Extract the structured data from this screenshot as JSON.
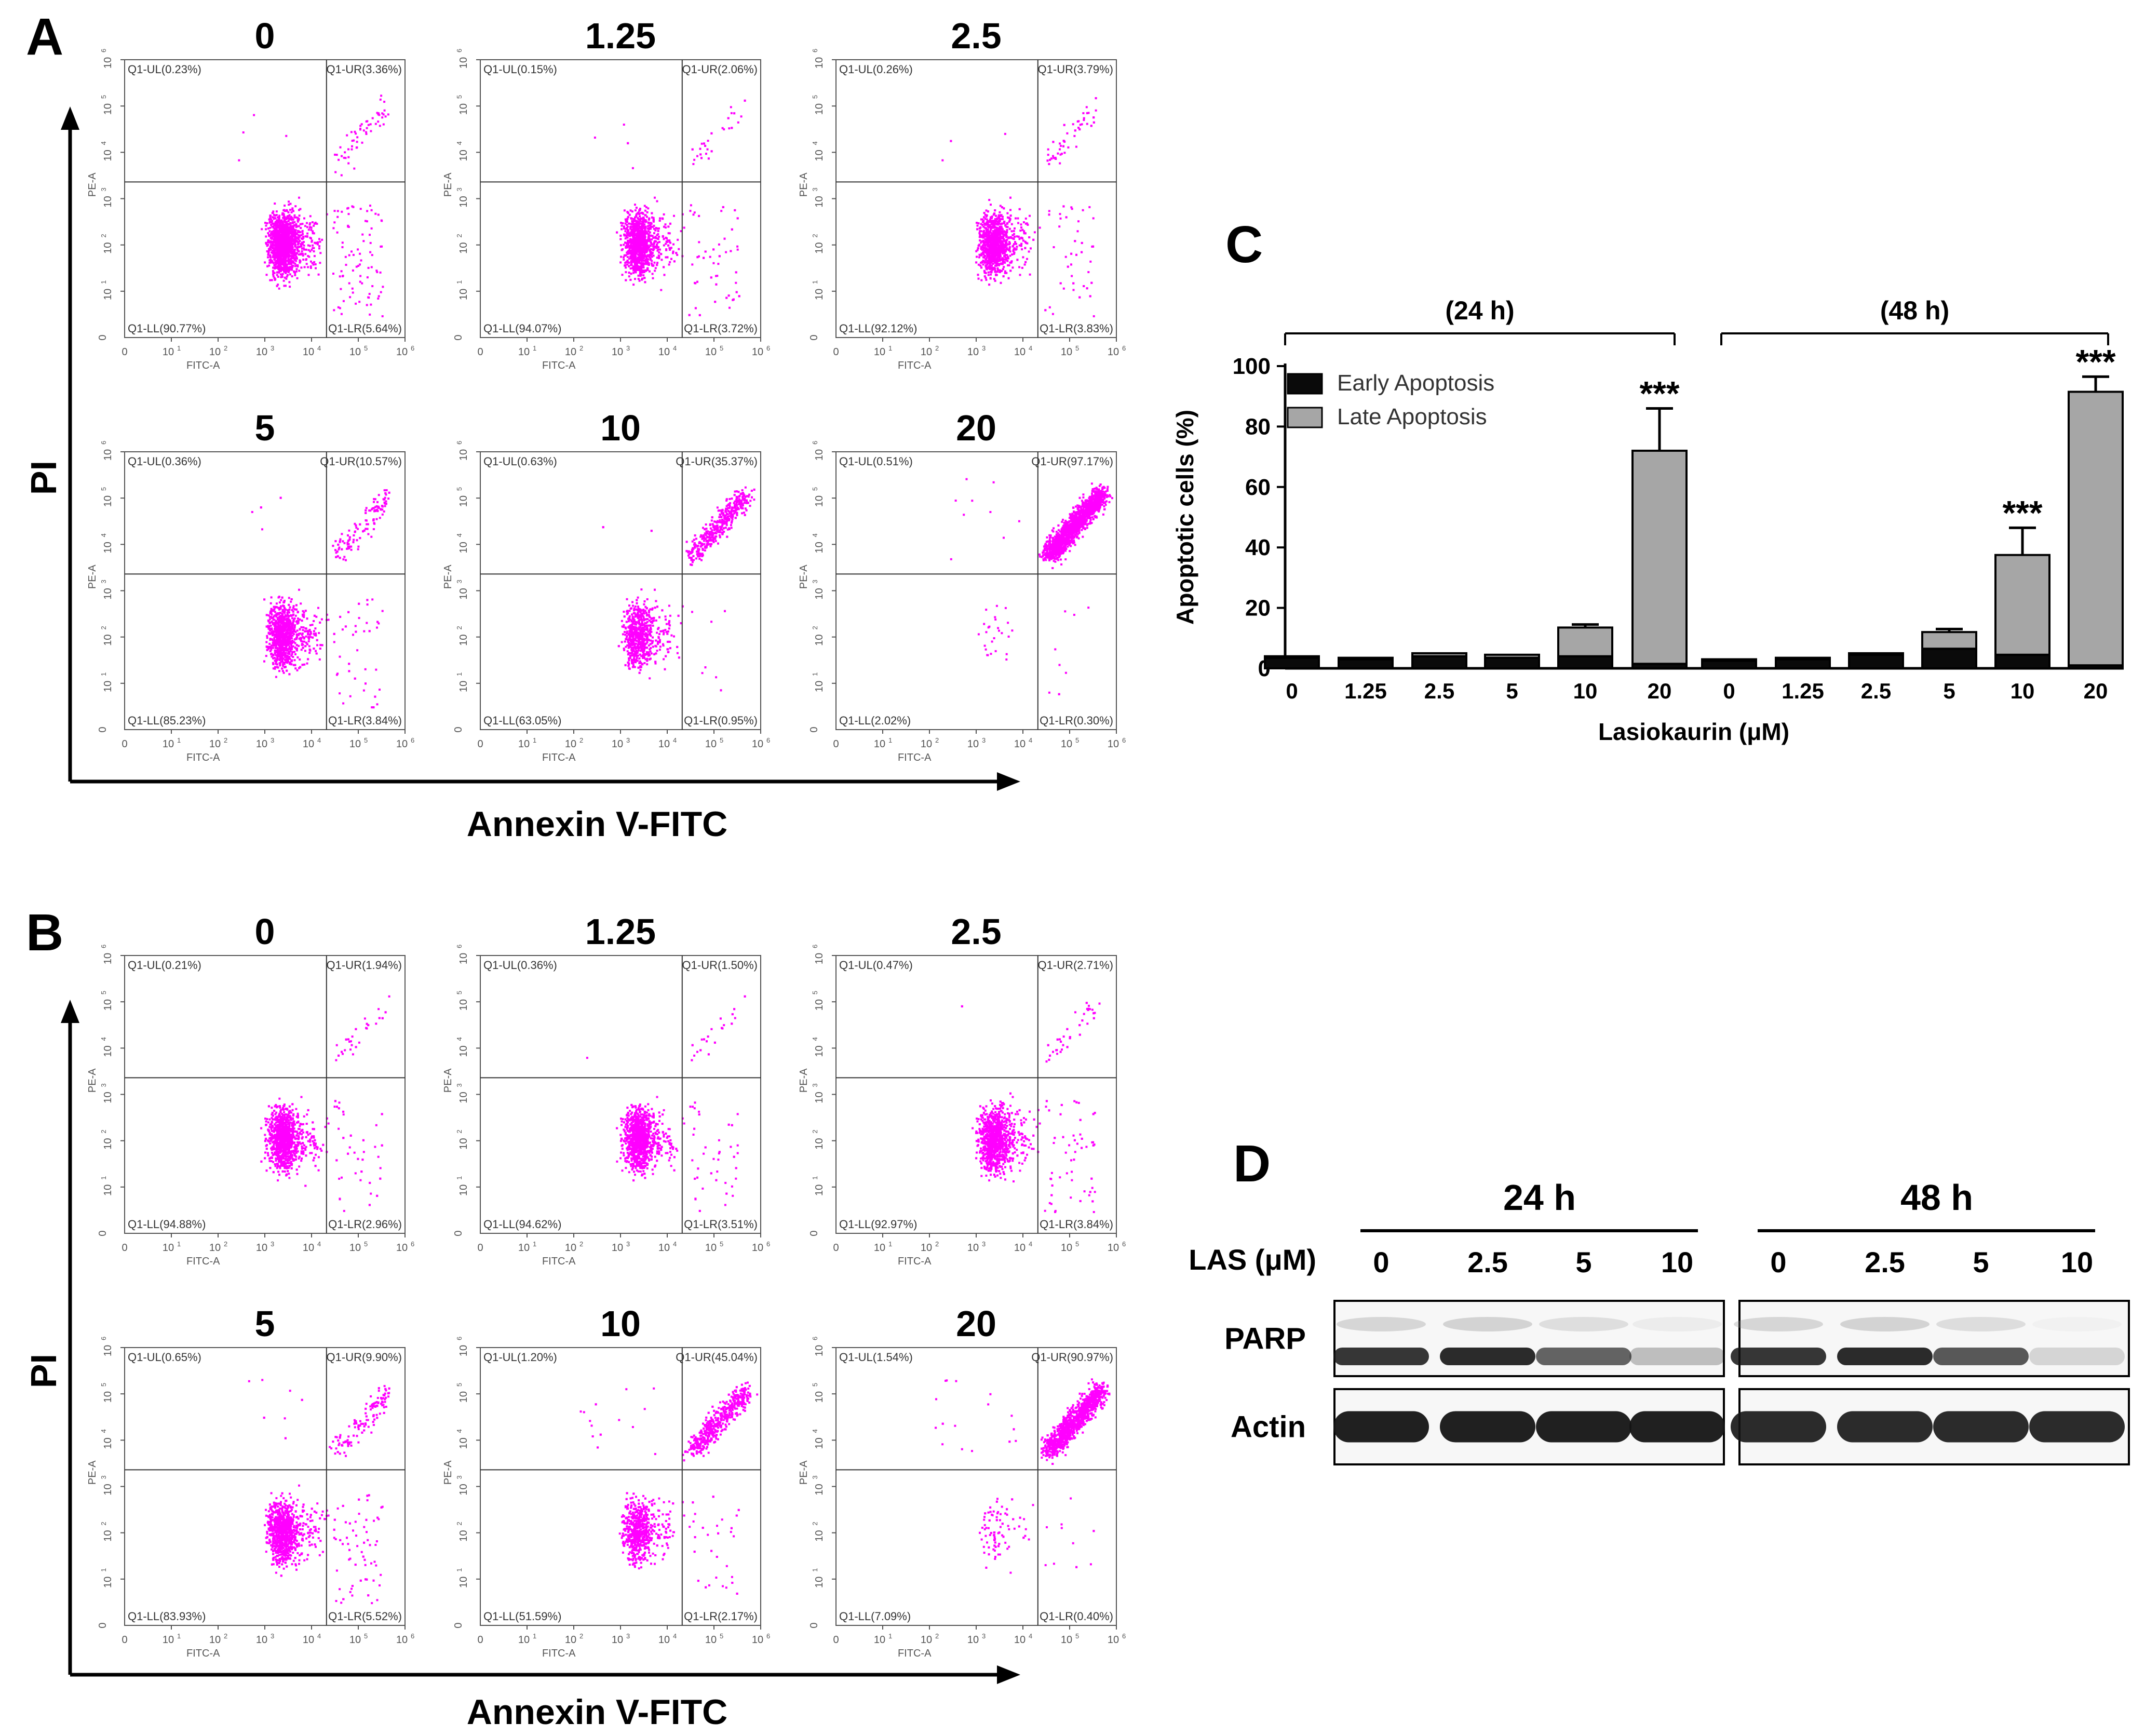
{
  "panel_labels": {
    "a": "A",
    "b": "B",
    "c": "C",
    "d": "D"
  },
  "flow_axes": {
    "y_title": "PI",
    "x_title": "Annexin V-FITC",
    "x_name": "FITC-A",
    "y_name": "PE-A",
    "tick_base": "10",
    "tick_zero": "0",
    "tick_exps": [
      "1",
      "2",
      "3",
      "4",
      "5",
      "6"
    ]
  },
  "flow_panels": [
    {
      "panel": "A",
      "dose": "0",
      "ul": "Q1-UL(0.23%)",
      "ur": "Q1-UR(3.36%)",
      "ll": "Q1-LL(90.77%)",
      "lr": "Q1-LR(5.64%)",
      "ur_pct": 3.36,
      "lr_pct": 5.64,
      "ul_pct": 0.23
    },
    {
      "panel": "A",
      "dose": "1.25",
      "ul": "Q1-UL(0.15%)",
      "ur": "Q1-UR(2.06%)",
      "ll": "Q1-LL(94.07%)",
      "lr": "Q1-LR(3.72%)",
      "ur_pct": 2.06,
      "lr_pct": 3.72,
      "ul_pct": 0.15
    },
    {
      "panel": "A",
      "dose": "2.5",
      "ul": "Q1-UL(0.26%)",
      "ur": "Q1-UR(3.79%)",
      "ll": "Q1-LL(92.12%)",
      "lr": "Q1-LR(3.83%)",
      "ur_pct": 3.79,
      "lr_pct": 3.83,
      "ul_pct": 0.26
    },
    {
      "panel": "A",
      "dose": "5",
      "ul": "Q1-UL(0.36%)",
      "ur": "Q1-UR(10.57%)",
      "ll": "Q1-LL(85.23%)",
      "lr": "Q1-LR(3.84%)",
      "ur_pct": 10.57,
      "lr_pct": 3.84,
      "ul_pct": 0.36
    },
    {
      "panel": "A",
      "dose": "10",
      "ul": "Q1-UL(0.63%)",
      "ur": "Q1-UR(35.37%)",
      "ll": "Q1-LL(63.05%)",
      "lr": "Q1-LR(0.95%)",
      "ur_pct": 35.37,
      "lr_pct": 0.95,
      "ul_pct": 0.63
    },
    {
      "panel": "A",
      "dose": "20",
      "ul": "Q1-UL(0.51%)",
      "ur": "Q1-UR(97.17%)",
      "ll": "Q1-LL(2.02%)",
      "lr": "Q1-LR(0.30%)",
      "ur_pct": 97.17,
      "lr_pct": 0.3,
      "ul_pct": 0.51
    },
    {
      "panel": "B",
      "dose": "0",
      "ul": "Q1-UL(0.21%)",
      "ur": "Q1-UR(1.94%)",
      "ll": "Q1-LL(94.88%)",
      "lr": "Q1-LR(2.96%)",
      "ur_pct": 1.94,
      "lr_pct": 2.96,
      "ul_pct": 0.21
    },
    {
      "panel": "B",
      "dose": "1.25",
      "ul": "Q1-UL(0.36%)",
      "ur": "Q1-UR(1.50%)",
      "ll": "Q1-LL(94.62%)",
      "lr": "Q1-LR(3.51%)",
      "ur_pct": 1.5,
      "lr_pct": 3.51,
      "ul_pct": 0.36
    },
    {
      "panel": "B",
      "dose": "2.5",
      "ul": "Q1-UL(0.47%)",
      "ur": "Q1-UR(2.71%)",
      "ll": "Q1-LL(92.97%)",
      "lr": "Q1-LR(3.84%)",
      "ur_pct": 2.71,
      "lr_pct": 3.84,
      "ul_pct": 0.47
    },
    {
      "panel": "B",
      "dose": "5",
      "ul": "Q1-UL(0.65%)",
      "ur": "Q1-UR(9.90%)",
      "ll": "Q1-LL(83.93%)",
      "lr": "Q1-LR(5.52%)",
      "ur_pct": 9.9,
      "lr_pct": 5.52,
      "ul_pct": 0.65
    },
    {
      "panel": "B",
      "dose": "10",
      "ul": "Q1-UL(1.20%)",
      "ur": "Q1-UR(45.04%)",
      "ll": "Q1-LL(51.59%)",
      "lr": "Q1-LR(2.17%)",
      "ur_pct": 45.04,
      "lr_pct": 2.17,
      "ul_pct": 1.2
    },
    {
      "panel": "B",
      "dose": "20",
      "ul": "Q1-UL(1.54%)",
      "ur": "Q1-UR(90.97%)",
      "ll": "Q1-LL(7.09%)",
      "lr": "Q1-LR(0.40%)",
      "ur_pct": 90.97,
      "lr_pct": 0.4,
      "ul_pct": 1.54
    }
  ],
  "chart_data": {
    "type": "bar",
    "stacked": true,
    "title": "",
    "xlabel": "Lasiokaurin (μM)",
    "ylabel": "Apoptotic cells (%)",
    "ylim": [
      0,
      100
    ],
    "yticks": [
      "0",
      "20",
      "40",
      "60",
      "80",
      "100"
    ],
    "groups": [
      {
        "label": "(24 h)",
        "categories": [
          "0",
          "1.25",
          "2.5",
          "5",
          "10",
          "20"
        ]
      },
      {
        "label": "(48 h)",
        "categories": [
          "0",
          "1.25",
          "2.5",
          "5",
          "10",
          "20"
        ]
      }
    ],
    "categories": [
      "0",
      "1.25",
      "2.5",
      "5",
      "10",
      "20",
      "0",
      "1.25",
      "2.5",
      "5",
      "10",
      "20"
    ],
    "series": [
      {
        "name": "Early Apoptosis",
        "color": "#0a0a0a",
        "values": [
          3.5,
          3.0,
          4.0,
          3.5,
          4.0,
          1.5,
          2.5,
          3.0,
          4.5,
          6.5,
          4.5,
          1.0
        ]
      },
      {
        "name": "Late Apoptosis",
        "color": "#a6a6a6",
        "values": [
          0.5,
          0.5,
          1.0,
          1.0,
          9.5,
          70.5,
          0.5,
          0.5,
          0.5,
          5.5,
          33.0,
          90.5
        ]
      }
    ],
    "error_plus": [
      0.5,
      0.3,
      0.4,
      0.4,
      1.0,
      14.0,
      0.3,
      0.3,
      0.4,
      1.0,
      9.0,
      5.0
    ],
    "significance": [
      "",
      "",
      "",
      "",
      "",
      "***",
      "",
      "",
      "",
      "",
      "***",
      "***"
    ]
  },
  "western": {
    "title_24": "24 h",
    "title_48": "48 h",
    "las_label": "LAS (μM)",
    "lanes": [
      "0",
      "2.5",
      "5",
      "10",
      "0",
      "2.5",
      "5",
      "10"
    ],
    "proteins": [
      {
        "name": "PARP",
        "intensities": [
          0.85,
          0.9,
          0.65,
          0.25,
          0.85,
          0.9,
          0.7,
          0.15
        ]
      },
      {
        "name": "Actin",
        "intensities": [
          0.95,
          0.95,
          0.95,
          0.95,
          0.9,
          0.9,
          0.9,
          0.9
        ]
      }
    ],
    "colors": {
      "band": "#141414",
      "fade": "#8a8a8a"
    }
  },
  "colors": {
    "dots": "#ff00ff",
    "ink": "#000000",
    "label_ink": "#444444"
  }
}
